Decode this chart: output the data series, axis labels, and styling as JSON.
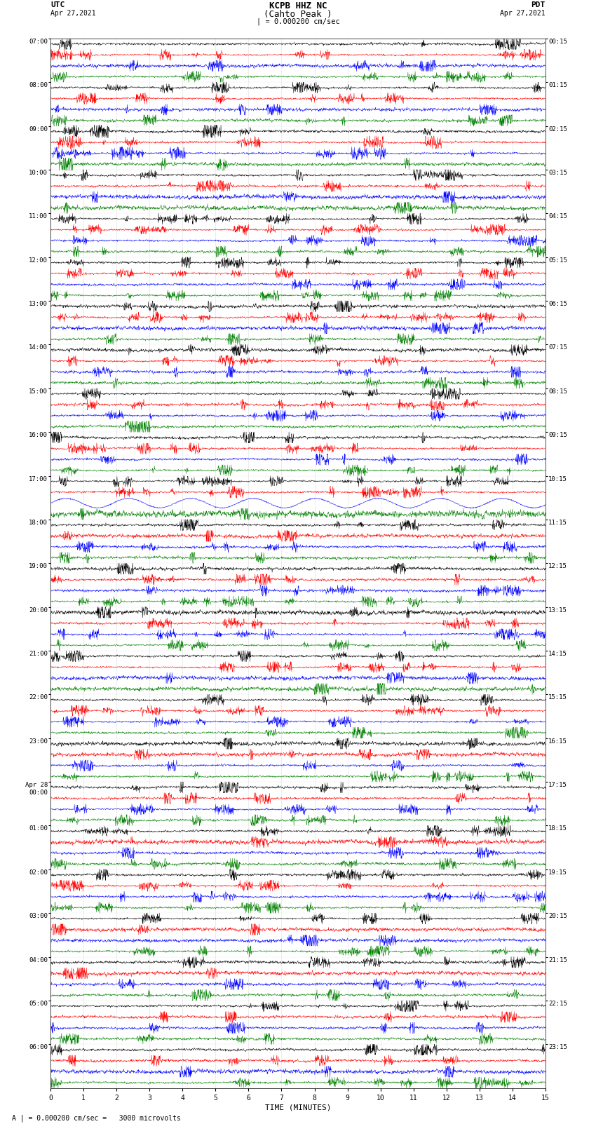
{
  "title_line1": "KCPB HHZ NC",
  "title_line2": "(Cahto Peak )",
  "scale_label": "| = 0.000200 cm/sec",
  "utc_header": "UTC",
  "utc_date": "Apr 27,2021",
  "pdt_header": "PDT",
  "pdt_date": "Apr 27,2021",
  "xlabel": "TIME (MINUTES)",
  "footnote": "A | = 0.000200 cm/sec =   3000 microvolts",
  "utc_hours": [
    "07:00",
    "08:00",
    "09:00",
    "10:00",
    "11:00",
    "12:00",
    "13:00",
    "14:00",
    "15:00",
    "16:00",
    "17:00",
    "18:00",
    "19:00",
    "20:00",
    "21:00",
    "22:00",
    "23:00",
    "Apr 28\n00:00",
    "01:00",
    "02:00",
    "03:00",
    "04:00",
    "05:00",
    "06:00"
  ],
  "pdt_hours": [
    "00:15",
    "01:15",
    "02:15",
    "03:15",
    "04:15",
    "05:15",
    "06:15",
    "07:15",
    "08:15",
    "09:15",
    "10:15",
    "11:15",
    "12:15",
    "13:15",
    "14:15",
    "15:15",
    "16:15",
    "17:15",
    "18:15",
    "19:15",
    "20:15",
    "21:15",
    "22:15",
    "23:15"
  ],
  "colors": [
    "black",
    "red",
    "blue",
    "green"
  ],
  "n_hours": 24,
  "traces_per_hour": 4,
  "background_color": "white",
  "fig_width": 8.5,
  "fig_height": 16.13,
  "dpi": 100,
  "xmin": 0,
  "xmax": 15,
  "xticks": [
    0,
    1,
    2,
    3,
    4,
    5,
    6,
    7,
    8,
    9,
    10,
    11,
    12,
    13,
    14,
    15
  ],
  "n_samples": 2000,
  "amplitude": 0.42,
  "special_hour_17_blue_amp": 0.48,
  "vgrid_interval": 1.0
}
